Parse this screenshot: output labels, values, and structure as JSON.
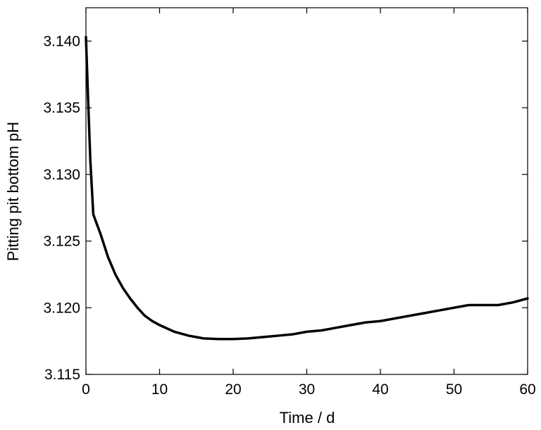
{
  "chart_data": {
    "type": "line",
    "xlabel": "Time / d",
    "ylabel": "Pitting pit bottom pH",
    "xlim": [
      0,
      60
    ],
    "ylim": [
      3.115,
      3.1425
    ],
    "x_ticks": [
      0,
      10,
      20,
      30,
      40,
      50,
      60
    ],
    "y_ticks": [
      3.115,
      3.12,
      3.125,
      3.13,
      3.135,
      3.14
    ],
    "x_tick_labels": [
      "0",
      "10",
      "20",
      "30",
      "40",
      "50",
      "60"
    ],
    "y_tick_labels": [
      "3.115",
      "3.120",
      "3.125",
      "3.130",
      "3.135",
      "3.140"
    ],
    "grid": false,
    "series": [
      {
        "color": "#000000",
        "x": [
          0,
          0.3,
          0.6,
          1,
          2,
          3,
          4,
          5,
          6,
          7,
          8,
          9,
          10,
          12,
          14,
          16,
          18,
          20,
          22,
          24,
          26,
          28,
          30,
          32,
          34,
          36,
          38,
          40,
          42,
          44,
          46,
          48,
          50,
          52,
          54,
          56,
          58,
          60
        ],
        "y": [
          3.1403,
          3.1355,
          3.131,
          3.127,
          3.1255,
          3.1238,
          3.1225,
          3.1215,
          3.1207,
          3.12,
          3.1194,
          3.119,
          3.1187,
          3.1182,
          3.1179,
          3.1177,
          3.11765,
          3.11765,
          3.1177,
          3.1178,
          3.1179,
          3.118,
          3.1182,
          3.1183,
          3.1185,
          3.1187,
          3.1189,
          3.119,
          3.1192,
          3.1194,
          3.1196,
          3.1198,
          3.12,
          3.1202,
          3.1202,
          3.1202,
          3.1204,
          3.1207
        ]
      }
    ]
  }
}
